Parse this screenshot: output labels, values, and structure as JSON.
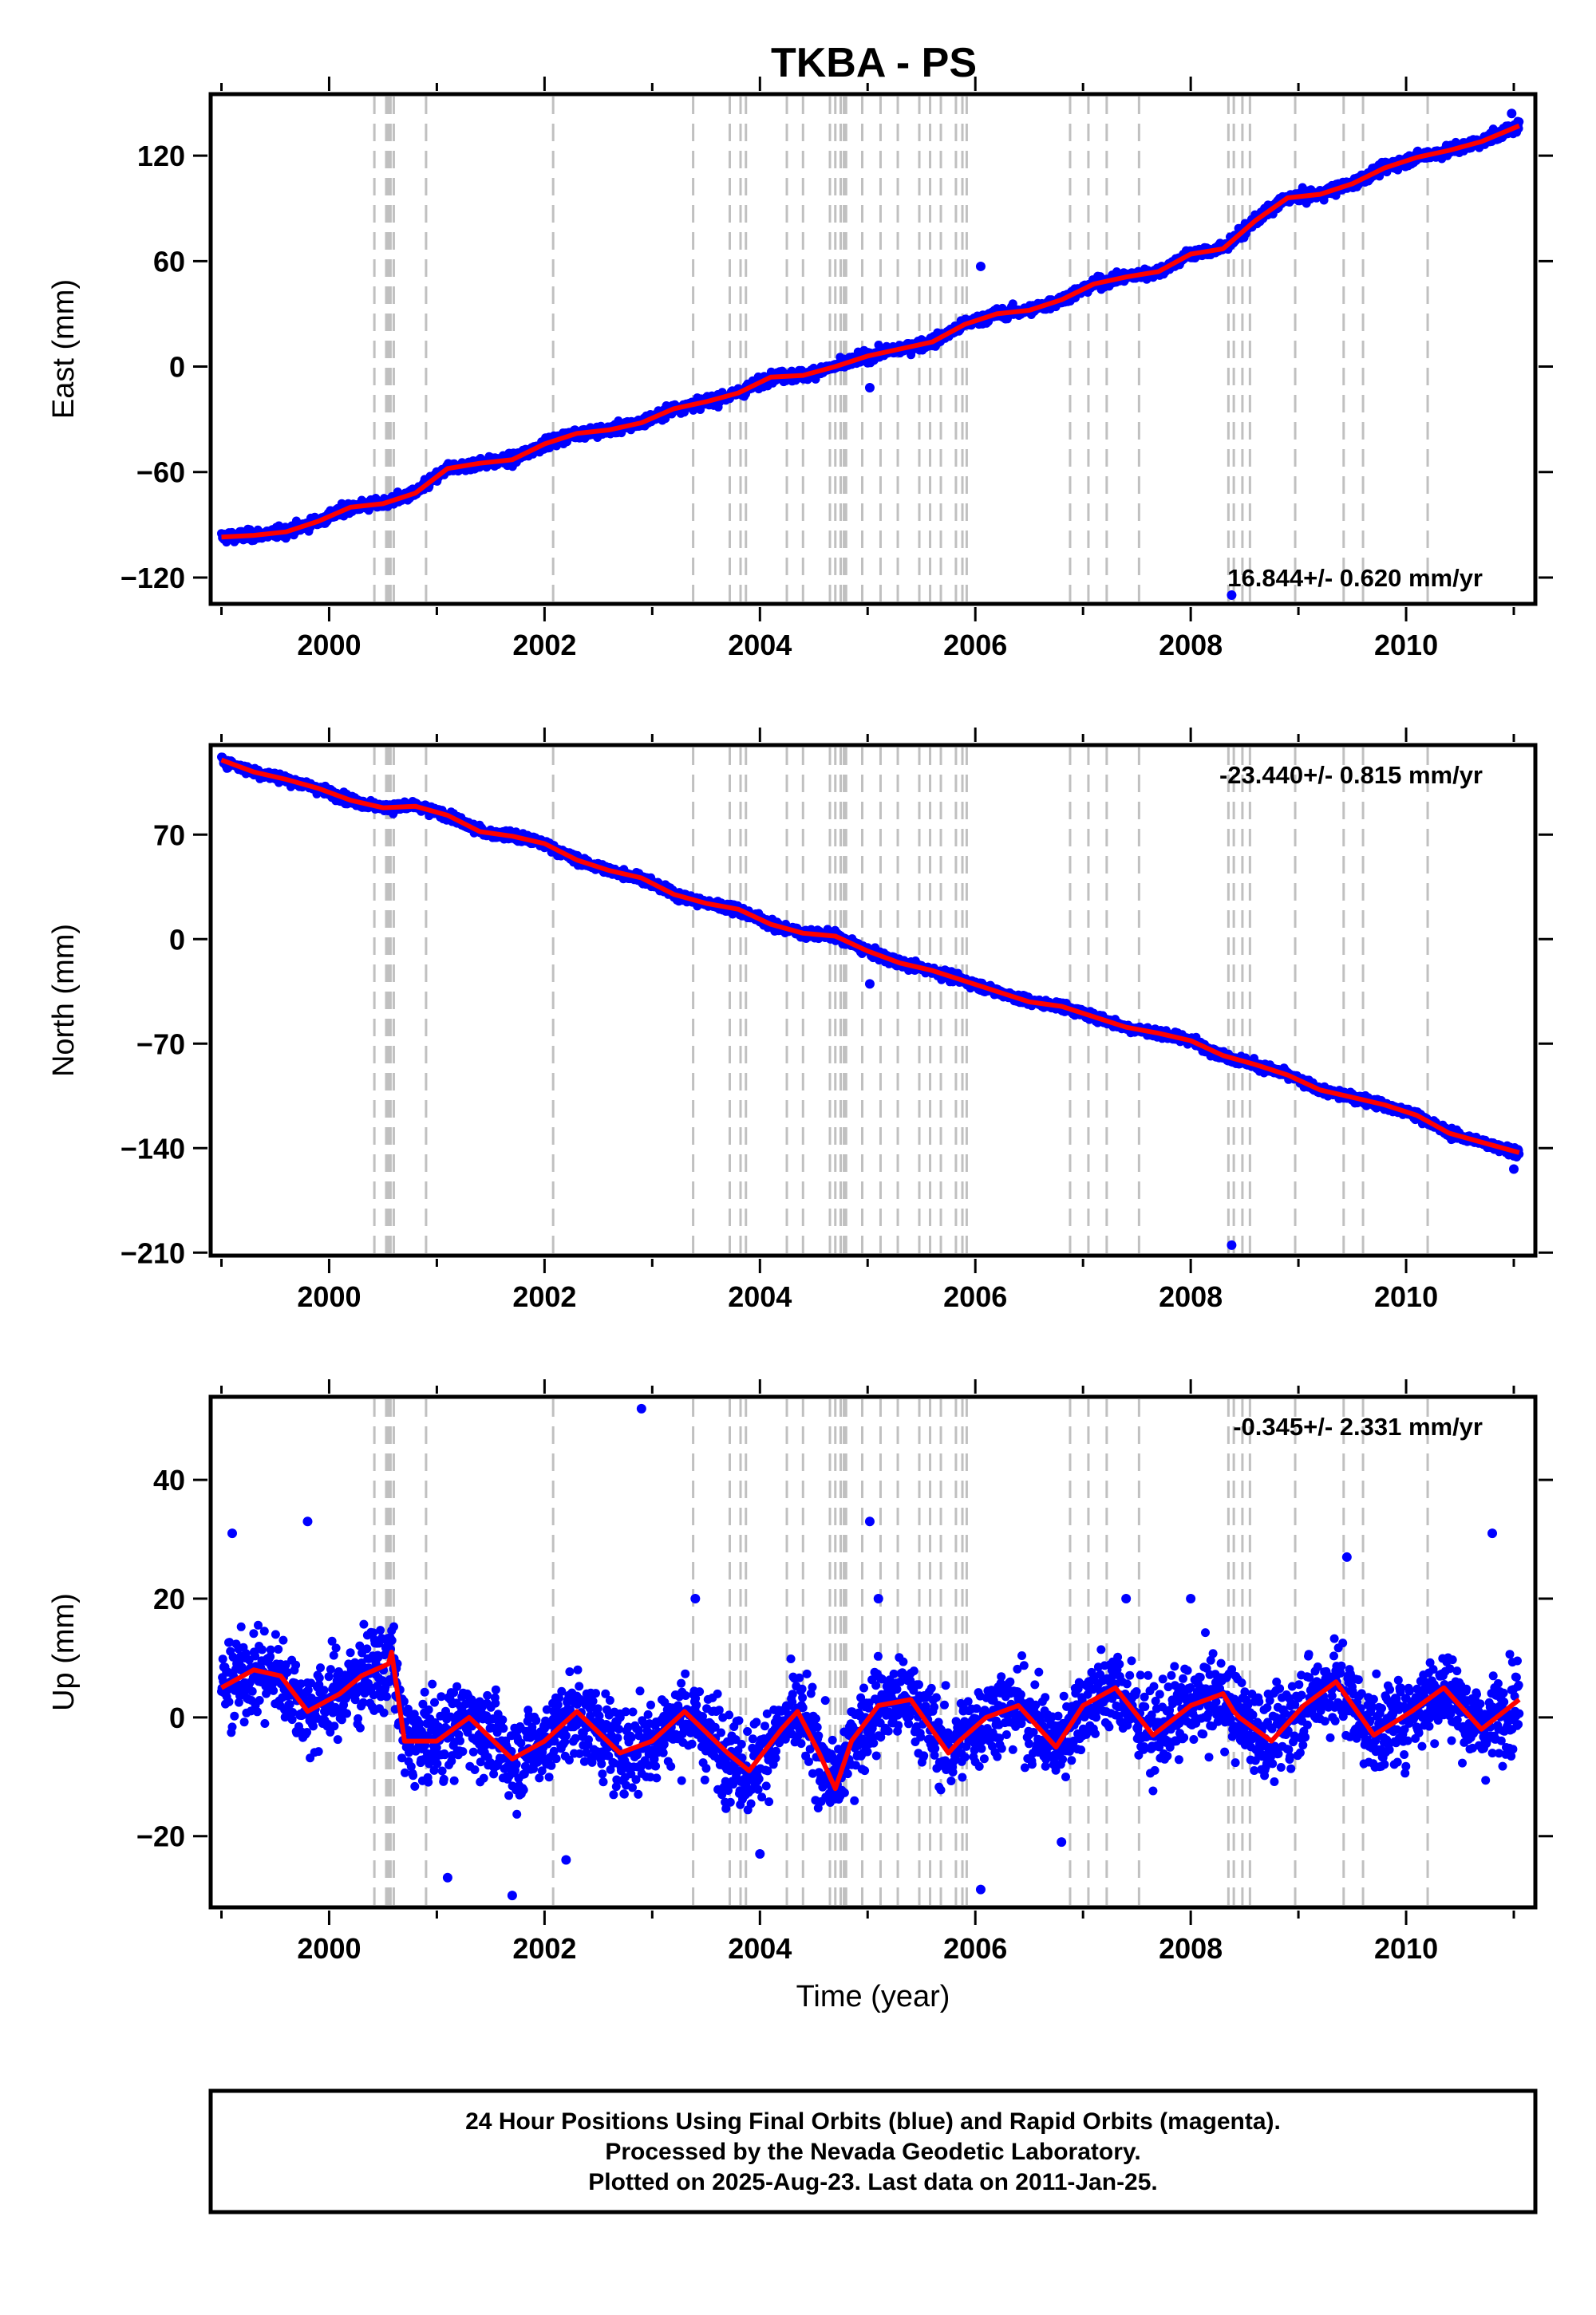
{
  "title": "TKBA - PS",
  "footer": {
    "lines": [
      "24 Hour Positions Using Final Orbits (blue) and Rapid Orbits (magenta).",
      "Processed by the Nevada Geodetic Laboratory.",
      "Plotted on 2025-Aug-23. Last data on 2011-Jan-25."
    ]
  },
  "colors": {
    "points": "#0000ff",
    "model": "#ff0000",
    "step_lines": "#c0c0c0",
    "frame": "#000000"
  },
  "chart_data": [
    {
      "type": "scatter",
      "component": "east",
      "ylabel": "East (mm)",
      "xlabel": "",
      "xlim": [
        1998.9,
        2011.2
      ],
      "ylim": [
        -135,
        155
      ],
      "xticks": [
        2000,
        2002,
        2004,
        2006,
        2008,
        2010
      ],
      "yticks": [
        -120,
        -60,
        0,
        60,
        120
      ],
      "rate_label": "16.844+/- 0.620 mm/yr",
      "rate_position": "bottom-right",
      "model": {
        "x": [
          1999.0,
          1999.3,
          1999.6,
          1999.9,
          2000.2,
          2000.5,
          2000.8,
          2001.1,
          2001.4,
          2001.7,
          2002.0,
          2002.3,
          2002.6,
          2002.9,
          2003.2,
          2003.5,
          2003.8,
          2004.1,
          2004.4,
          2004.7,
          2005.0,
          2005.3,
          2005.6,
          2005.9,
          2006.2,
          2006.5,
          2006.8,
          2007.1,
          2007.4,
          2007.7,
          2008.0,
          2008.3,
          2008.6,
          2008.9,
          2009.2,
          2009.5,
          2009.8,
          2010.1,
          2010.4,
          2010.7,
          2011.05
        ],
        "y": [
          -97,
          -96,
          -94,
          -88,
          -80,
          -78,
          -72,
          -58,
          -55,
          -53,
          -44,
          -38,
          -36,
          -32,
          -24,
          -20,
          -15,
          -6,
          -5,
          0,
          6,
          10,
          14,
          24,
          30,
          32,
          38,
          47,
          51,
          54,
          64,
          67,
          83,
          96,
          98,
          104,
          113,
          119,
          123,
          128,
          137
        ]
      },
      "points": {
        "x": [
          2005.02,
          2006.05,
          2008.38,
          2010.98
        ],
        "y": [
          -12,
          57,
          -130,
          144
        ]
      }
    },
    {
      "type": "scatter",
      "component": "north",
      "ylabel": "North (mm)",
      "xlabel": "",
      "xlim": [
        1998.9,
        2011.2
      ],
      "ylim": [
        -212,
        130
      ],
      "xticks": [
        2000,
        2002,
        2004,
        2006,
        2008,
        2010
      ],
      "yticks": [
        -210,
        -140,
        -70,
        0,
        70
      ],
      "rate_label": "-23.440+/- 0.815 mm/yr",
      "rate_position": "top-right",
      "model": {
        "x": [
          1999.0,
          1999.3,
          1999.6,
          1999.9,
          2000.2,
          2000.5,
          2000.8,
          2001.1,
          2001.4,
          2001.7,
          2002.0,
          2002.3,
          2002.6,
          2002.9,
          2003.2,
          2003.5,
          2003.8,
          2004.1,
          2004.4,
          2004.7,
          2005.0,
          2005.3,
          2005.6,
          2005.9,
          2006.2,
          2006.5,
          2006.8,
          2007.1,
          2007.4,
          2007.7,
          2008.0,
          2008.3,
          2008.6,
          2008.9,
          2009.2,
          2009.5,
          2009.8,
          2010.1,
          2010.4,
          2010.7,
          2011.05
        ],
        "y": [
          120,
          112,
          107,
          101,
          93,
          88,
          89,
          83,
          72,
          69,
          64,
          53,
          46,
          41,
          30,
          24,
          20,
          10,
          4,
          2,
          -8,
          -16,
          -21,
          -28,
          -35,
          -42,
          -45,
          -52,
          -59,
          -63,
          -68,
          -78,
          -84,
          -91,
          -101,
          -106,
          -111,
          -118,
          -130,
          -136,
          -143
        ]
      },
      "points": {
        "x": [
          2005.02,
          2008.38,
          2011.0
        ],
        "y": [
          -30,
          -205,
          -154
        ]
      }
    },
    {
      "type": "scatter",
      "component": "up",
      "ylabel": "Up (mm)",
      "xlabel": "Time (year)",
      "xlim": [
        1998.9,
        2011.2
      ],
      "ylim": [
        -32,
        54
      ],
      "xticks": [
        2000,
        2002,
        2004,
        2006,
        2008,
        2010
      ],
      "yticks": [
        -20,
        0,
        20,
        40
      ],
      "rate_label": "-0.345+/- 2.331 mm/yr",
      "rate_position": "top-right",
      "model": {
        "x": [
          1999.0,
          1999.3,
          1999.55,
          1999.8,
          2000.1,
          2000.3,
          2000.55,
          2000.58,
          2000.7,
          2001.0,
          2001.3,
          2001.7,
          2002.0,
          2002.3,
          2002.7,
          2003.0,
          2003.3,
          2003.7,
          2003.9,
          2004.2,
          2004.35,
          2004.55,
          2004.7,
          2004.85,
          2005.1,
          2005.4,
          2005.75,
          2005.85,
          2006.1,
          2006.4,
          2006.75,
          2007.0,
          2007.3,
          2007.65,
          2008.0,
          2008.3,
          2008.4,
          2008.45,
          2008.75,
          2009.05,
          2009.35,
          2009.7,
          2010.05,
          2010.35,
          2010.7,
          2011.05
        ],
        "y": [
          5,
          8,
          7,
          1,
          4,
          7,
          9,
          11,
          -4,
          -4,
          0,
          -7,
          -4,
          1,
          -6,
          -4,
          1,
          -6,
          -9,
          -2,
          1,
          -6,
          -12,
          -4,
          2,
          3,
          -6,
          -4,
          0,
          2,
          -5,
          2,
          5,
          -3,
          2,
          4,
          1,
          0,
          -4,
          2,
          6,
          -3,
          1,
          5,
          -2,
          3
        ]
      },
      "points": {
        "x": [
          2002.9,
          1999.1,
          1999.8,
          2001.7,
          2003.4,
          2005.02,
          2005.1,
          2007.4,
          2008.0,
          2009.45,
          2010.8,
          2006.05,
          2001.1,
          2002.2,
          2004.0,
          2006.8
        ],
        "y": [
          52,
          31,
          33,
          -30,
          20,
          33,
          20,
          20,
          20,
          27,
          31,
          -29,
          -27,
          -24,
          -23,
          -21
        ]
      },
      "scatter_spread_mm": 5
    }
  ],
  "step_epochs": [
    2000.42,
    2000.53,
    2000.55,
    2000.57,
    2000.6,
    2000.9,
    2002.08,
    2003.38,
    2003.72,
    2003.82,
    2003.87,
    2004.25,
    2004.4,
    2004.65,
    2004.7,
    2004.75,
    2004.78,
    2004.8,
    2004.95,
    2005.12,
    2005.28,
    2005.48,
    2005.58,
    2005.68,
    2005.82,
    2005.88,
    2005.92,
    2006.88,
    2007.05,
    2007.22,
    2007.52,
    2008.35,
    2008.4,
    2008.48,
    2008.55,
    2008.97,
    2009.42,
    2009.6,
    2010.2
  ]
}
